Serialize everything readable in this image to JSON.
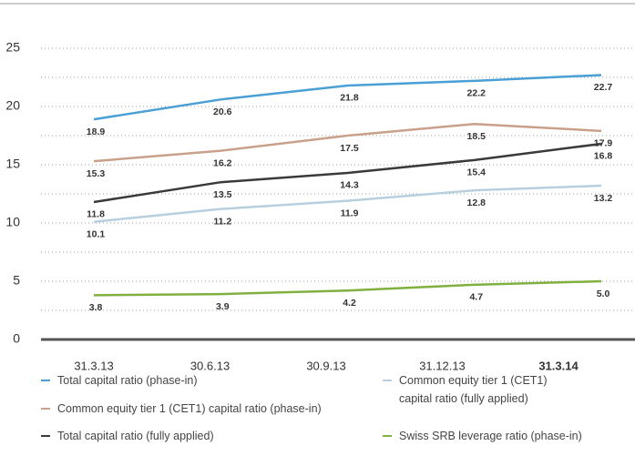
{
  "chart_data": {
    "type": "line",
    "categories": [
      "31.3.13",
      "30.6.13",
      "30.9.13",
      "31.12.13",
      "31.3.14"
    ],
    "bold_category": 4,
    "ylim": [
      0,
      25
    ],
    "yticks": [
      0,
      5,
      10,
      15,
      20,
      25
    ],
    "minor_grid": [
      2.5,
      7.5,
      12.5,
      17.5,
      22.5
    ],
    "grid": true,
    "series": [
      {
        "name": "Total capital ratio (phase-in)",
        "color": "#4a9fd4",
        "values": [
          18.9,
          20.6,
          21.8,
          22.2,
          22.7
        ]
      },
      {
        "name": "Common equity tier 1 (CET1) capital ratio (phase-in)",
        "color": "#c9a08a",
        "values": [
          15.3,
          16.2,
          17.5,
          18.5,
          17.9
        ]
      },
      {
        "name": "Total capital ratio (fully applied)",
        "color": "#3a3a3a",
        "values": [
          11.8,
          13.5,
          14.3,
          15.4,
          16.8
        ]
      },
      {
        "name": "Common equity tier 1 (CET1) capital ratio (fully applied)",
        "color": "#b8cfe0",
        "values": [
          10.1,
          11.2,
          11.9,
          12.8,
          13.2
        ]
      },
      {
        "name": "Swiss SRB leverage ratio (phase-in)",
        "color": "#7fb040",
        "values": [
          3.8,
          3.9,
          4.2,
          4.7,
          5.0
        ],
        "value_labels": [
          "3.8",
          "3.9",
          "4.2",
          "4.7",
          "5.0"
        ]
      }
    ]
  }
}
